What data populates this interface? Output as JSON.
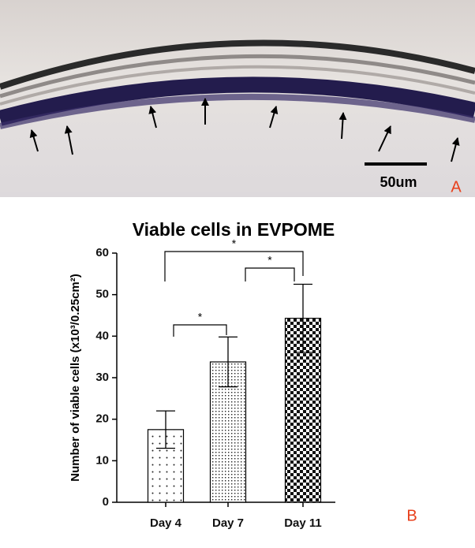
{
  "panel_a": {
    "scale_label": "50um",
    "panel_label": "A"
  },
  "chart_data": {
    "type": "bar",
    "title": "Viable cells in EVPOME",
    "ylabel": "Number of viable cells (x10³/0.25cm²)",
    "categories": [
      "Day 4",
      "Day 7",
      "Day 11"
    ],
    "values": [
      17.5,
      33.8,
      44.3
    ],
    "errors": [
      4.5,
      6,
      8.2
    ],
    "ylim": [
      0,
      60
    ],
    "yticks": [
      0,
      10,
      20,
      30,
      40,
      50,
      60
    ],
    "annotations": [
      "*",
      "*",
      "*"
    ],
    "panel_label": "B"
  }
}
